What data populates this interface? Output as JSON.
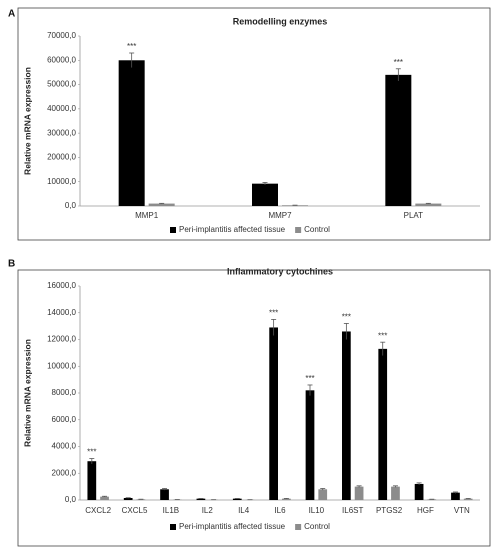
{
  "chart_data": [
    {
      "type": "bar",
      "panel": "A",
      "title": "Remodelling enzymes",
      "y_label": "Relative mRNA expression",
      "categories": [
        "MMP1",
        "MMP7",
        "PLAT"
      ],
      "series": [
        {
          "name": "Peri-implantitis affected tissue",
          "color": "#000000",
          "values": [
            60000,
            9200,
            54000
          ],
          "errors": [
            3000,
            500,
            2500
          ],
          "significance": [
            "***",
            null,
            "***"
          ]
        },
        {
          "name": "Control",
          "color": "#8c8c8c",
          "values": [
            1000,
            300,
            1000
          ],
          "errors": [
            100,
            50,
            100
          ],
          "significance": [
            null,
            null,
            null
          ]
        }
      ],
      "ylim": [
        0,
        70000
      ],
      "yticks": [
        {
          "value": 0,
          "label": "0,0"
        },
        {
          "value": 10000,
          "label": "10000,0"
        },
        {
          "value": 20000,
          "label": "20000,0"
        },
        {
          "value": 30000,
          "label": "30000,0"
        },
        {
          "value": 40000,
          "label": "40000,0"
        },
        {
          "value": 50000,
          "label": "50000,0"
        },
        {
          "value": 60000,
          "label": "60000,0"
        },
        {
          "value": 70000,
          "label": "70000,0"
        }
      ],
      "grid": false,
      "legend": "bottom"
    },
    {
      "type": "bar",
      "panel": "B",
      "title": "Inflammatory cytochines",
      "y_label": "Relative mRNA expression",
      "categories": [
        "CXCL2",
        "CXCL5",
        "IL1B",
        "IL2",
        "IL4",
        "IL6",
        "IL10",
        "IL6ST",
        "PTGS2",
        "HGF",
        "VTN"
      ],
      "series": [
        {
          "name": "Peri-implantitis affected tissue",
          "color": "#000000",
          "values": [
            2900,
            150,
            800,
            100,
            100,
            12900,
            8200,
            12600,
            11300,
            1200,
            550
          ],
          "errors": [
            200,
            20,
            60,
            15,
            15,
            600,
            400,
            600,
            500,
            80,
            50
          ],
          "significance": [
            "***",
            null,
            null,
            null,
            null,
            "***",
            "***",
            "***",
            "***",
            null,
            null
          ]
        },
        {
          "name": "Control",
          "color": "#8c8c8c",
          "values": [
            250,
            50,
            30,
            20,
            20,
            100,
            800,
            1000,
            1000,
            50,
            100
          ],
          "errors": [
            30,
            10,
            5,
            5,
            5,
            20,
            60,
            60,
            60,
            10,
            15
          ],
          "significance": [
            null,
            null,
            null,
            null,
            null,
            null,
            null,
            null,
            null,
            null,
            null
          ]
        }
      ],
      "ylim": [
        0,
        16000
      ],
      "yticks": [
        {
          "value": 0,
          "label": "0,0"
        },
        {
          "value": 2000,
          "label": "2000,0"
        },
        {
          "value": 4000,
          "label": "4000,0"
        },
        {
          "value": 6000,
          "label": "6000,0"
        },
        {
          "value": 8000,
          "label": "8000,0"
        },
        {
          "value": 10000,
          "label": "10000,0"
        },
        {
          "value": 12000,
          "label": "12000,0"
        },
        {
          "value": 14000,
          "label": "14000,0"
        },
        {
          "value": 16000,
          "label": "16000,0"
        }
      ],
      "grid": false,
      "legend": "bottom"
    }
  ]
}
